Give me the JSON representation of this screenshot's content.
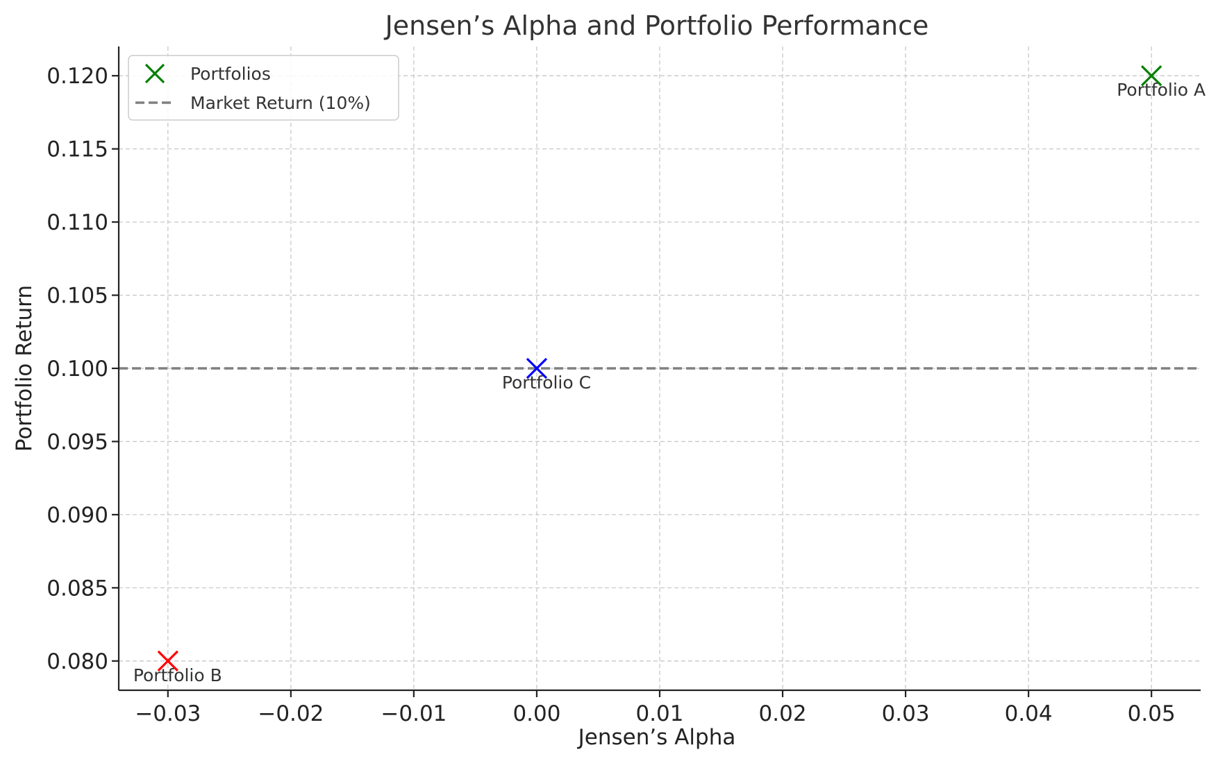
{
  "chart_data": {
    "type": "scatter",
    "title": "Jensen’s Alpha and Portfolio Performance",
    "xlabel": "Jensen’s Alpha",
    "ylabel": "Portfolio Return",
    "xlim": [
      -0.034,
      0.054
    ],
    "ylim": [
      0.078,
      0.122
    ],
    "x_ticks": [
      -0.03,
      -0.02,
      -0.01,
      0.0,
      0.01,
      0.02,
      0.03,
      0.04,
      0.05
    ],
    "x_tick_labels": [
      "−0.03",
      "−0.02",
      "−0.01",
      "0.00",
      "0.01",
      "0.02",
      "0.03",
      "0.04",
      "0.05"
    ],
    "y_ticks": [
      0.08,
      0.085,
      0.09,
      0.095,
      0.1,
      0.105,
      0.11,
      0.115,
      0.12
    ],
    "y_tick_labels": [
      "0.080",
      "0.085",
      "0.090",
      "0.095",
      "0.100",
      "0.105",
      "0.110",
      "0.115",
      "0.120"
    ],
    "grid": true,
    "series": [
      {
        "name": "Portfolios",
        "marker": "x",
        "points": [
          {
            "label": "Portfolio A",
            "x": 0.05,
            "y": 0.12,
            "color": "#008000"
          },
          {
            "label": "Portfolio B",
            "x": -0.03,
            "y": 0.08,
            "color": "#ff0000"
          },
          {
            "label": "Portfolio C",
            "x": 0.0,
            "y": 0.1,
            "color": "#0000ff"
          }
        ]
      }
    ],
    "reference_lines": [
      {
        "name": "Market Return (10%)",
        "orientation": "horizontal",
        "y": 0.1,
        "color": "#808080",
        "style": "dashed"
      }
    ],
    "legend": {
      "position": "top-left",
      "entries": [
        {
          "label": "Portfolios",
          "symbol": "x",
          "color": "#008000"
        },
        {
          "label": "Market Return (10%)",
          "symbol": "dashed-line",
          "color": "#808080"
        }
      ]
    }
  }
}
